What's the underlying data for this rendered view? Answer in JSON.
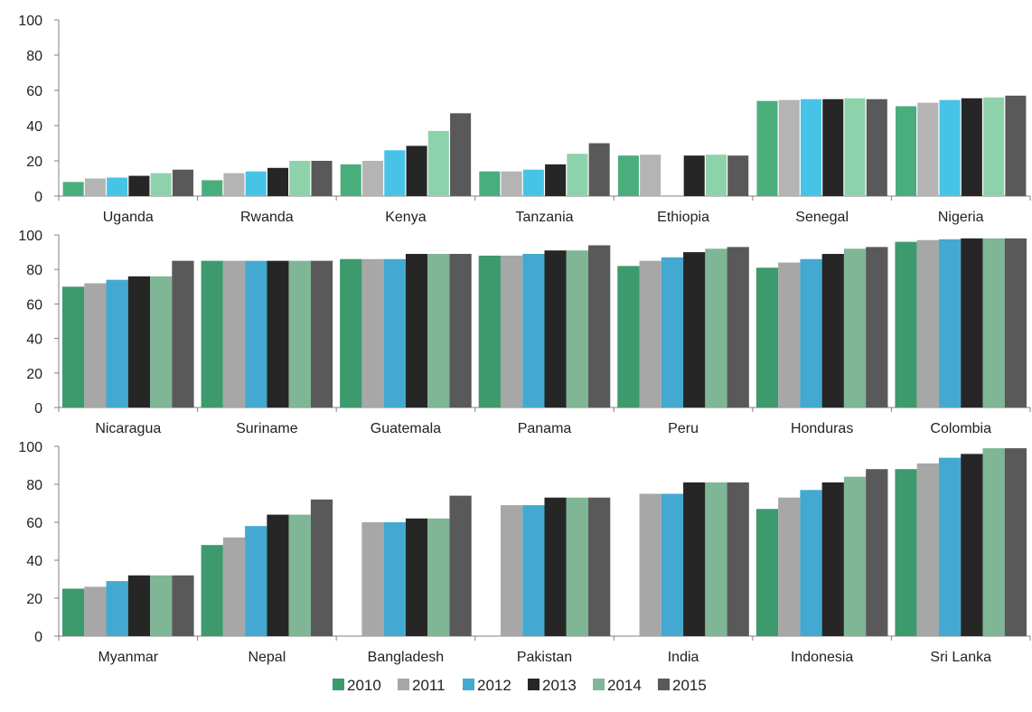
{
  "chart_data": [
    {
      "type": "bar",
      "categories": [
        "Uganda",
        "Rwanda",
        "Kenya",
        "Tanzania",
        "Ethiopia",
        "Senegal",
        "Nigeria"
      ],
      "ylim": [
        0,
        100
      ],
      "yticks": [
        0,
        20,
        40,
        60,
        80,
        100
      ],
      "grid": false,
      "series": [
        {
          "name": "2010",
          "values": [
            8,
            9,
            18,
            14,
            23,
            54,
            51
          ]
        },
        {
          "name": "2011",
          "values": [
            10,
            13,
            20,
            14,
            23.5,
            54.5,
            53
          ]
        },
        {
          "name": "2012",
          "values": [
            10.5,
            14,
            26,
            15,
            null,
            55,
            54.5
          ]
        },
        {
          "name": "2013",
          "values": [
            11.5,
            16,
            28.5,
            18,
            23,
            55,
            55.5
          ]
        },
        {
          "name": "2014",
          "values": [
            13,
            20,
            37,
            24,
            23.5,
            55.5,
            56
          ]
        },
        {
          "name": "2015",
          "values": [
            15,
            20,
            47,
            30,
            23,
            55,
            57
          ]
        }
      ]
    },
    {
      "type": "bar",
      "categories": [
        "Nicaragua",
        "Suriname",
        "Guatemala",
        "Panama",
        "Peru",
        "Honduras",
        "Colombia"
      ],
      "ylim": [
        0,
        100
      ],
      "yticks": [
        0,
        20,
        40,
        60,
        80,
        100
      ],
      "grid": false,
      "series": [
        {
          "name": "2010",
          "values": [
            70,
            85,
            86,
            88,
            82,
            81,
            96
          ]
        },
        {
          "name": "2011",
          "values": [
            72,
            85,
            86,
            88,
            85,
            84,
            97
          ]
        },
        {
          "name": "2012",
          "values": [
            74,
            85,
            86,
            89,
            87,
            86,
            97.5
          ]
        },
        {
          "name": "2013",
          "values": [
            76,
            85,
            89,
            91,
            90,
            89,
            98
          ]
        },
        {
          "name": "2014",
          "values": [
            76,
            85,
            89,
            91,
            92,
            92,
            98
          ]
        },
        {
          "name": "2015",
          "values": [
            85,
            85,
            89,
            94,
            93,
            93,
            98
          ]
        }
      ]
    },
    {
      "type": "bar",
      "categories": [
        "Myanmar",
        "Nepal",
        "Bangladesh",
        "Pakistan",
        "India",
        "Indonesia",
        "Sri Lanka"
      ],
      "ylim": [
        0,
        100
      ],
      "yticks": [
        0,
        20,
        40,
        60,
        80,
        100
      ],
      "grid": false,
      "series": [
        {
          "name": "2010",
          "values": [
            25,
            48,
            null,
            null,
            null,
            67,
            88
          ]
        },
        {
          "name": "2011",
          "values": [
            26,
            52,
            60,
            69,
            75,
            73,
            91
          ]
        },
        {
          "name": "2012",
          "values": [
            29,
            58,
            60,
            69,
            75,
            77,
            94
          ]
        },
        {
          "name": "2013",
          "values": [
            32,
            64,
            62,
            73,
            81,
            81,
            96
          ]
        },
        {
          "name": "2014",
          "values": [
            32,
            64,
            62,
            73,
            81,
            84,
            99
          ]
        },
        {
          "name": "2015",
          "values": [
            32,
            72,
            74,
            73,
            81,
            88,
            99
          ]
        }
      ]
    }
  ],
  "legend": {
    "position": "bottom-center",
    "items": [
      {
        "label": "2010",
        "color_key": "2010"
      },
      {
        "label": "2011",
        "color_key": "2011"
      },
      {
        "label": "2012",
        "color_key": "2012"
      },
      {
        "label": "2013",
        "color_key": "2013"
      },
      {
        "label": "2014",
        "color_key": "2014"
      },
      {
        "label": "2015",
        "color_key": "2015"
      }
    ]
  },
  "colors": {
    "panel_1": {
      "2010": "#4aae7c",
      "2011": "#b4b4b4",
      "2012": "#47c3e8",
      "2013": "#262626",
      "2014": "#8ed2ac",
      "2015": "#595959"
    },
    "panel_2": {
      "2010": "#3c9a6c",
      "2011": "#a7a7a7",
      "2012": "#43a9d0",
      "2013": "#262626",
      "2014": "#7fb695",
      "2015": "#595959"
    },
    "panel_3": {
      "2010": "#3c9a6c",
      "2011": "#a7a7a7",
      "2012": "#43a9d0",
      "2013": "#262626",
      "2014": "#7fb695",
      "2015": "#595959"
    },
    "legend": {
      "2010": "#3c9a6c",
      "2011": "#a7a7a7",
      "2012": "#43a9d0",
      "2013": "#262626",
      "2014": "#7fb695",
      "2015": "#595959"
    }
  }
}
